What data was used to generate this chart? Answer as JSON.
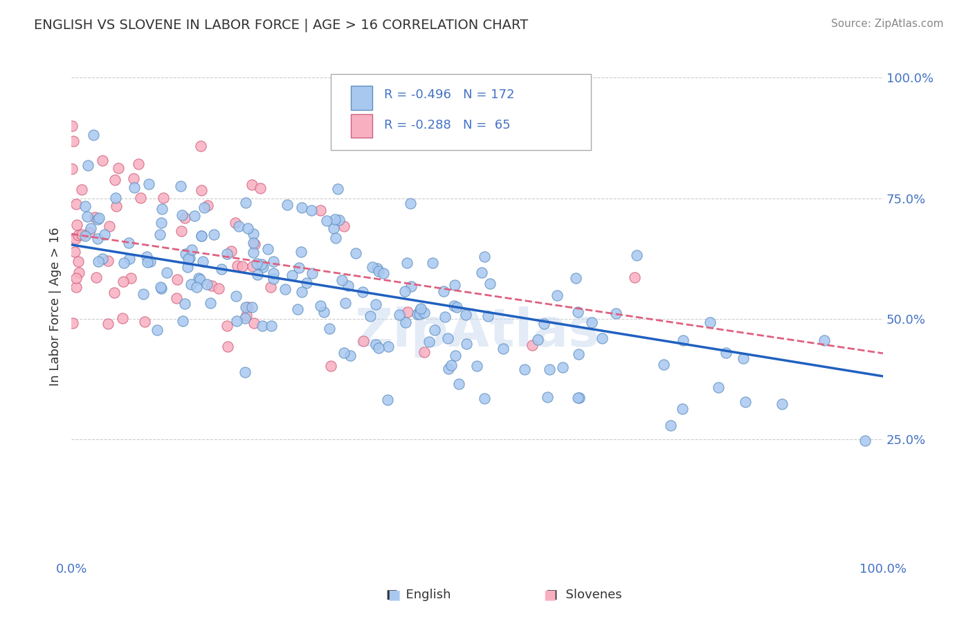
{
  "title": "ENGLISH VS SLOVENE IN LABOR FORCE | AGE > 16 CORRELATION CHART",
  "source_text": "Source: ZipAtlas.com",
  "xlabel": "",
  "ylabel": "In Labor Force | Age > 16",
  "xlim": [
    0.0,
    1.0
  ],
  "ylim": [
    0.0,
    1.05
  ],
  "yticks": [
    0.0,
    0.25,
    0.5,
    0.75,
    1.0
  ],
  "ytick_labels": [
    "",
    "25.0%",
    "50.0%",
    "75.0%",
    "100.0%"
  ],
  "xticks": [
    0.0,
    0.1,
    0.2,
    0.3,
    0.4,
    0.5,
    0.6,
    0.7,
    0.8,
    0.9,
    1.0
  ],
  "xtick_labels": [
    "0.0%",
    "",
    "",
    "",
    "",
    "",
    "",
    "",
    "",
    "",
    "100.0%"
  ],
  "english_color": "#a8c8f0",
  "slovene_color": "#f8b0c0",
  "english_edge_color": "#6090c0",
  "slovene_edge_color": "#d06080",
  "trend_english_color": "#2060c0",
  "trend_slovene_color": "#e06080",
  "R_english": -0.496,
  "N_english": 172,
  "R_slovene": -0.288,
  "N_slovene": 65,
  "background_color": "#ffffff",
  "grid_color": "#cccccc",
  "title_color": "#333333",
  "axis_label_color": "#333333",
  "tick_label_color": "#4472c4",
  "watermark_text": "ZipAtlas",
  "watermark_color": "#c8d8f0",
  "english_seed": 42,
  "slovene_seed": 99
}
